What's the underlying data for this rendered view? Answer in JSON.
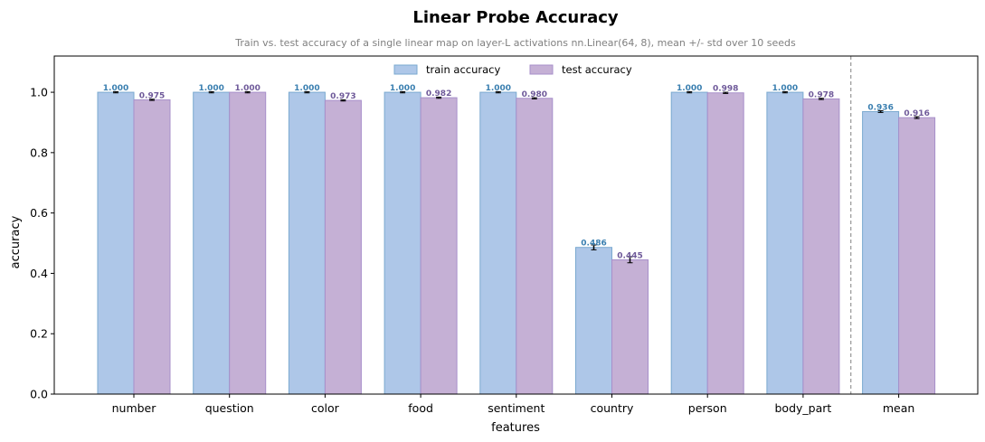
{
  "chart_data": {
    "type": "bar",
    "title": "Linear Probe Accuracy",
    "subtitle": "Train vs. test accuracy of a single linear map on layer-L activations  nn.Linear(64, 8), mean +/- std over 10 seeds",
    "xlabel": "features",
    "ylabel": "accuracy",
    "ylim": [
      0,
      1.12
    ],
    "yticks": [
      "0.0",
      "0.2",
      "0.4",
      "0.6",
      "0.8",
      "1.0"
    ],
    "ytick_values": [
      0,
      0.2,
      0.4,
      0.6,
      0.8,
      1.0
    ],
    "categories": [
      "number",
      "question",
      "color",
      "food",
      "sentiment",
      "country",
      "person",
      "body_part",
      "mean"
    ],
    "separator_after_index": 7,
    "legend_position": "top-center",
    "grid": false,
    "series": [
      {
        "name": "train accuracy",
        "color": "#aec7e8",
        "edge": "#7aa9cf",
        "label_color": "#3a7fb0",
        "values": [
          1.0,
          1.0,
          1.0,
          1.0,
          1.0,
          0.486,
          1.0,
          1.0,
          0.936
        ],
        "errors": [
          0.002,
          0.002,
          0.002,
          0.002,
          0.002,
          0.008,
          0.002,
          0.002,
          0.003
        ],
        "labels": [
          "1.000",
          "1.000",
          "1.000",
          "1.000",
          "1.000",
          "0.486",
          "1.000",
          "1.000",
          "0.936"
        ]
      },
      {
        "name": "test accuracy",
        "color": "#c5b0d5",
        "edge": "#a78fca",
        "label_color": "#6f5a9a",
        "values": [
          0.975,
          1.0,
          0.973,
          0.982,
          0.98,
          0.445,
          0.998,
          0.978,
          0.916
        ],
        "errors": [
          0.002,
          0.002,
          0.002,
          0.002,
          0.002,
          0.01,
          0.002,
          0.002,
          0.003
        ],
        "labels": [
          "0.975",
          "1.000",
          "0.973",
          "0.982",
          "0.980",
          "0.445",
          "0.998",
          "0.978",
          "0.916"
        ]
      }
    ]
  }
}
